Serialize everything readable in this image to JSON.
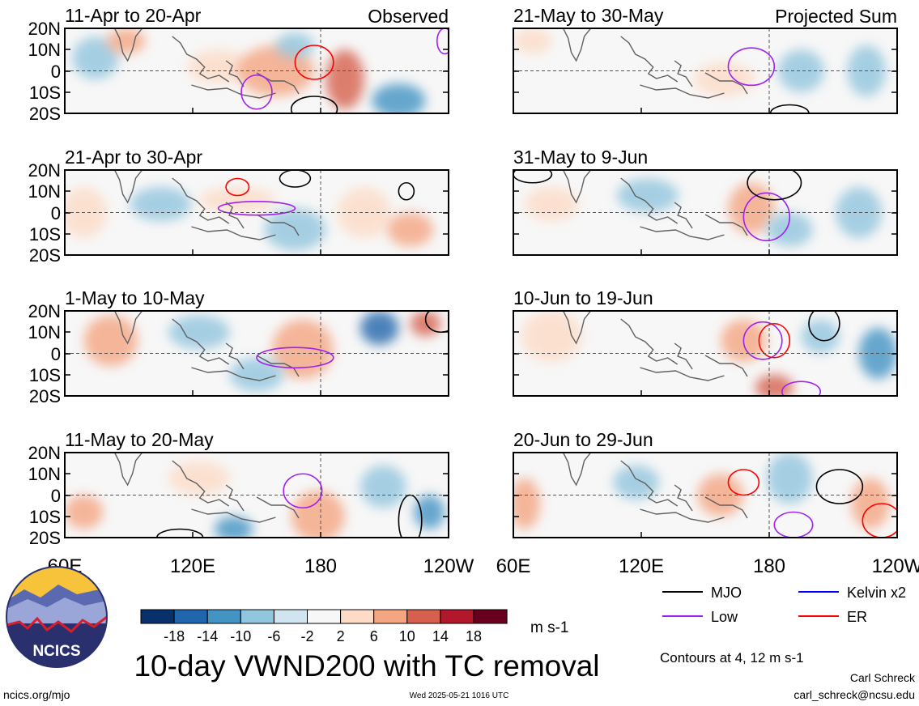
{
  "chart_data": {
    "type": "heatmap",
    "title": "10-day VWND200 with TC removal",
    "units": "m s-1",
    "contour_note": "Contours at 4, 12 m s-1",
    "x_ticks": [
      "60E",
      "120E",
      "180",
      "120W"
    ],
    "y_ticks": [
      "20N",
      "10N",
      "0",
      "10S",
      "20S"
    ],
    "xlim_deg_east": [
      60,
      240
    ],
    "ylim_deg": [
      -20,
      20
    ],
    "colorbar_levels": [
      "-18",
      "-14",
      "-10",
      "-6",
      "-2",
      "2",
      "6",
      "10",
      "14",
      "18"
    ],
    "colorbar_colors": [
      "#08306b",
      "#2166ac",
      "#4393c3",
      "#92c5de",
      "#d1e5f0",
      "#f7f7f7",
      "#fddbc7",
      "#f4a582",
      "#d6604d",
      "#b2182b",
      "#67001f"
    ],
    "legend": [
      {
        "label": "MJO",
        "color": "#000000"
      },
      {
        "label": "Kelvin x2",
        "color": "#0000ff"
      },
      {
        "label": "Low",
        "color": "#a020f0"
      },
      {
        "label": "ER",
        "color": "#ff0000"
      }
    ],
    "panels": [
      {
        "period": "11-Apr to 20-Apr",
        "tag": "Observed"
      },
      {
        "period": "21-Apr to 30-Apr",
        "tag": ""
      },
      {
        "period": "1-May to 10-May",
        "tag": ""
      },
      {
        "period": "11-May to 20-May",
        "tag": ""
      },
      {
        "period": "21-May to 30-May",
        "tag": "Projected Sum"
      },
      {
        "period": "31-May to 9-Jun",
        "tag": ""
      },
      {
        "period": "10-Jun to 19-Jun",
        "tag": ""
      },
      {
        "period": "20-Jun to 29-Jun",
        "tag": ""
      }
    ]
  },
  "logo": {
    "text": "NCICS"
  },
  "footer": {
    "url": "ncics.org/mjo",
    "timestamp": "Wed 2025-05-21 1016 UTC",
    "author": "Carl Schreck",
    "email": "carl_schreck@ncsu.edu"
  }
}
